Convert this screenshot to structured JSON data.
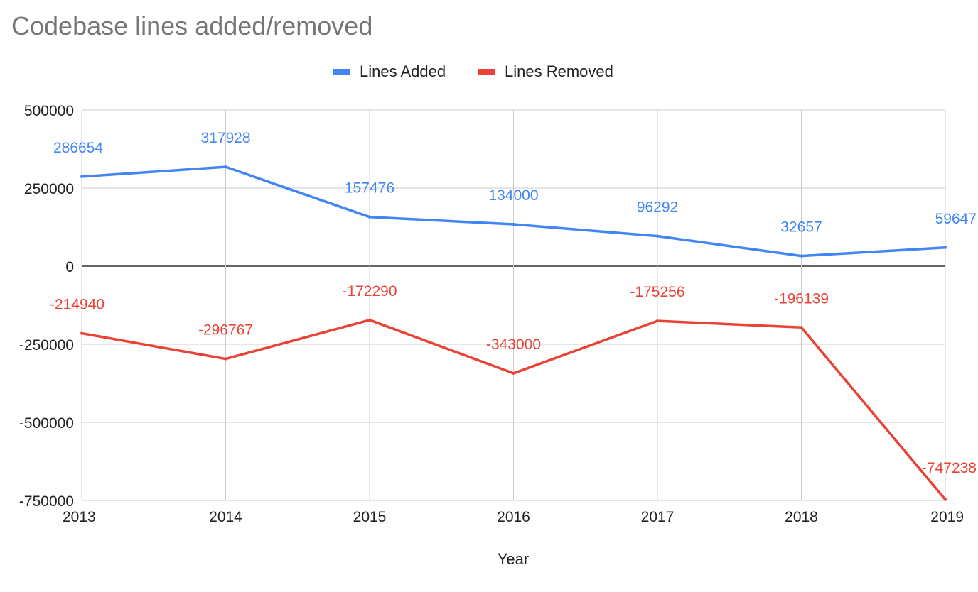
{
  "chart_data": {
    "type": "line",
    "title": "Codebase lines added/removed",
    "xlabel": "Year",
    "ylabel": "",
    "categories": [
      "2013",
      "2014",
      "2015",
      "2016",
      "2017",
      "2018",
      "2019"
    ],
    "ylim": [
      -750000,
      500000
    ],
    "yticks": [
      500000,
      250000,
      0,
      -250000,
      -500000,
      -750000
    ],
    "ytick_labels": [
      "500000",
      "250000",
      "0",
      "-250000",
      "-500000",
      "-750000"
    ],
    "grid": true,
    "legend_position": "top-center",
    "series": [
      {
        "name": "Lines Added",
        "color": "#4285f4",
        "values": [
          286654,
          317928,
          157476,
          134000,
          96292,
          32657,
          59647
        ],
        "data_labels": [
          "286654",
          "317928",
          "157476",
          "134000",
          "96292",
          "32657",
          "59647"
        ]
      },
      {
        "name": "Lines Removed",
        "color": "#ea4335",
        "values": [
          -214940,
          -296767,
          -172290,
          -343000,
          -175256,
          -196139,
          -747238
        ],
        "data_labels": [
          "-214940",
          "-296767",
          "-172290",
          "-343000",
          "-175256",
          "-196139",
          "-747238"
        ]
      }
    ]
  }
}
